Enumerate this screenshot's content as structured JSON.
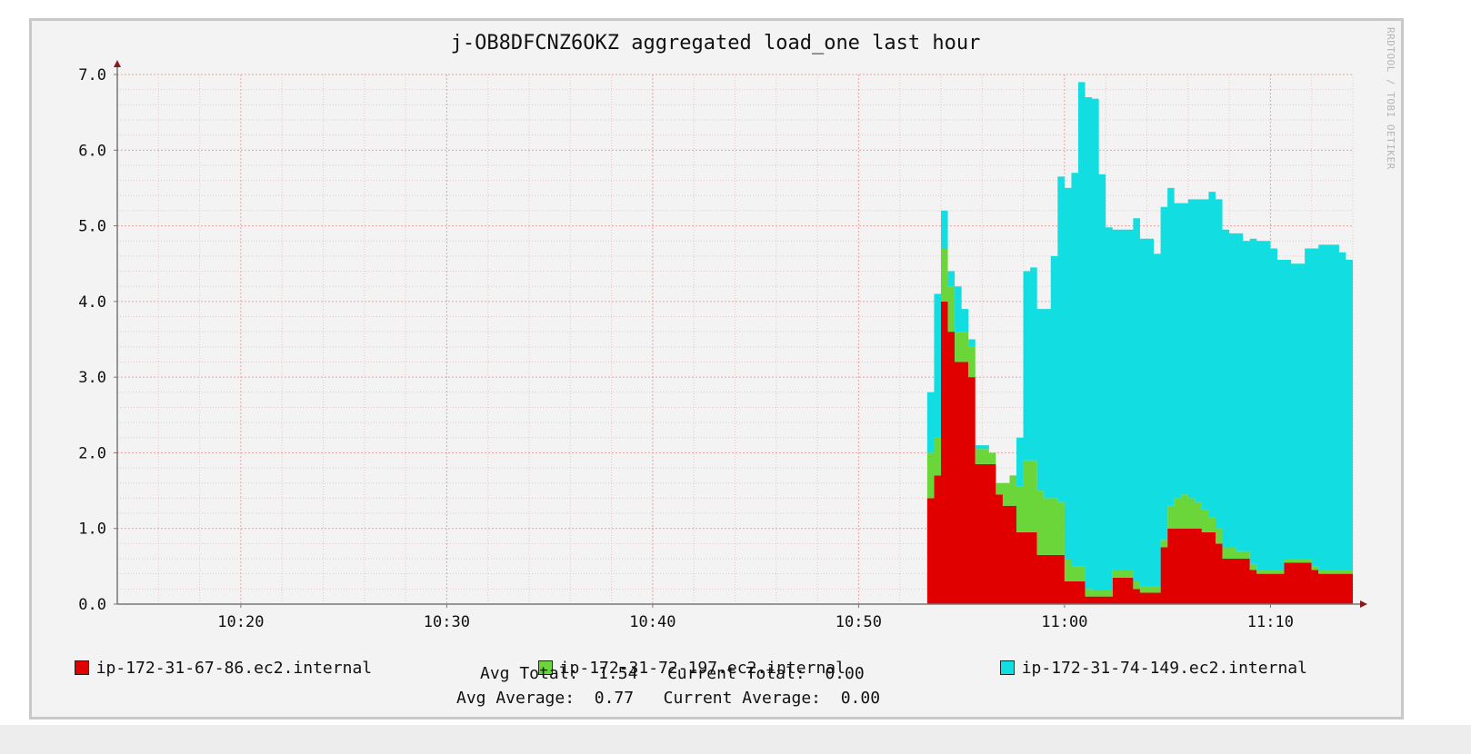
{
  "chart_data": {
    "type": "area",
    "stacked": true,
    "title": "j-OB8DFCNZ6OKZ aggregated load_one last hour",
    "xlabel": "",
    "ylabel": "",
    "ylim": [
      0,
      7
    ],
    "y_ticks": [
      "0.0",
      "1.0",
      "2.0",
      "3.0",
      "4.0",
      "5.0",
      "6.0",
      "7.0"
    ],
    "x_range": [
      "10:14",
      "11:14"
    ],
    "x_ticks": [
      "10:20",
      "10:30",
      "10:40",
      "10:50",
      "11:00",
      "11:10"
    ],
    "grid": true,
    "legend_position": "bottom",
    "x": [
      "10:53:20",
      "10:53:40",
      "10:54:00",
      "10:54:20",
      "10:54:40",
      "10:55:00",
      "10:55:20",
      "10:55:40",
      "10:56:00",
      "10:56:20",
      "10:56:40",
      "10:57:00",
      "10:57:20",
      "10:57:40",
      "10:58:00",
      "10:58:20",
      "10:58:40",
      "10:59:00",
      "10:59:20",
      "10:59:40",
      "11:00:00",
      "11:00:20",
      "11:00:40",
      "11:01:00",
      "11:01:20",
      "11:01:40",
      "11:02:00",
      "11:02:20",
      "11:02:40",
      "11:03:00",
      "11:03:20",
      "11:03:40",
      "11:04:00",
      "11:04:20",
      "11:04:40",
      "11:05:00",
      "11:05:20",
      "11:05:40",
      "11:06:00",
      "11:06:20",
      "11:06:40",
      "11:07:00",
      "11:07:20",
      "11:07:40",
      "11:08:00",
      "11:08:20",
      "11:08:40",
      "11:09:00",
      "11:09:20",
      "11:09:40",
      "11:10:00",
      "11:10:20",
      "11:10:40",
      "11:11:00",
      "11:11:20",
      "11:11:40",
      "11:12:00",
      "11:12:20",
      "11:12:40",
      "11:13:00",
      "11:13:20",
      "11:13:40"
    ],
    "series": [
      {
        "name": "ip-172-31-67-86.ec2.internal",
        "color": "#e00000",
        "values": [
          1.4,
          1.7,
          4.0,
          3.6,
          3.2,
          3.2,
          3.0,
          1.85,
          1.85,
          1.85,
          1.45,
          1.3,
          1.3,
          0.95,
          0.95,
          0.95,
          0.65,
          0.65,
          0.65,
          0.65,
          0.3,
          0.3,
          0.3,
          0.1,
          0.1,
          0.1,
          0.1,
          0.35,
          0.35,
          0.35,
          0.2,
          0.15,
          0.15,
          0.15,
          0.75,
          1.0,
          1.0,
          1.0,
          1.0,
          1.0,
          0.95,
          0.95,
          0.8,
          0.6,
          0.6,
          0.6,
          0.6,
          0.45,
          0.4,
          0.4,
          0.4,
          0.4,
          0.55,
          0.55,
          0.55,
          0.55,
          0.45,
          0.4,
          0.4,
          0.4,
          0.4,
          0.4
        ]
      },
      {
        "name": "ip-172-31-72-197.ec2.internal",
        "color": "#6ad63a",
        "values": [
          0.6,
          0.5,
          0.7,
          0.6,
          0.4,
          0.4,
          0.4,
          0.2,
          0.2,
          0.15,
          0.15,
          0.3,
          0.4,
          0.6,
          0.95,
          0.95,
          0.85,
          0.75,
          0.75,
          0.7,
          0.3,
          0.2,
          0.2,
          0.1,
          0.08,
          0.08,
          0.08,
          0.1,
          0.1,
          0.1,
          0.1,
          0.08,
          0.08,
          0.08,
          0.1,
          0.3,
          0.4,
          0.45,
          0.4,
          0.35,
          0.3,
          0.2,
          0.2,
          0.15,
          0.15,
          0.1,
          0.1,
          0.08,
          0.05,
          0.05,
          0.05,
          0.05,
          0.05,
          0.05,
          0.05,
          0.05,
          0.05,
          0.05,
          0.05,
          0.05,
          0.05,
          0.05
        ]
      },
      {
        "name": "ip-172-31-74-149.ec2.internal",
        "color": "#12dde0",
        "values": [
          0.8,
          1.9,
          0.5,
          0.2,
          0.6,
          0.3,
          0.1,
          0.05,
          0.05,
          0.0,
          0.0,
          0.0,
          0.0,
          0.65,
          2.5,
          2.55,
          2.4,
          2.5,
          3.2,
          4.3,
          4.9,
          5.2,
          6.4,
          6.5,
          6.5,
          5.5,
          4.8,
          4.5,
          4.5,
          4.5,
          4.8,
          4.6,
          4.6,
          4.4,
          4.4,
          4.2,
          3.9,
          3.85,
          3.95,
          4.0,
          4.1,
          4.3,
          4.35,
          4.2,
          4.15,
          4.2,
          4.1,
          4.3,
          4.35,
          4.35,
          4.25,
          4.1,
          3.95,
          3.9,
          3.9,
          4.1,
          4.2,
          4.3,
          4.3,
          4.3,
          4.2,
          4.1
        ]
      }
    ]
  },
  "legend": [
    {
      "label": "ip-172-31-67-86.ec2.internal",
      "color": "#e00000"
    },
    {
      "label": "ip-172-31-72-197.ec2.internal",
      "color": "#6ad63a"
    },
    {
      "label": "ip-172-31-74-149.ec2.internal",
      "color": "#12dde0"
    }
  ],
  "stats": {
    "avg_total_label": "Avg Total:",
    "avg_total_value": "1.54",
    "current_total_label": "Current Total:",
    "current_total_value": "0.00",
    "avg_average_label": "Avg Average:",
    "avg_average_value": "0.77",
    "current_average_label": "Current Average:",
    "current_average_value": "0.00"
  },
  "credit": "RRDTOOL / TOBI OETIKER"
}
